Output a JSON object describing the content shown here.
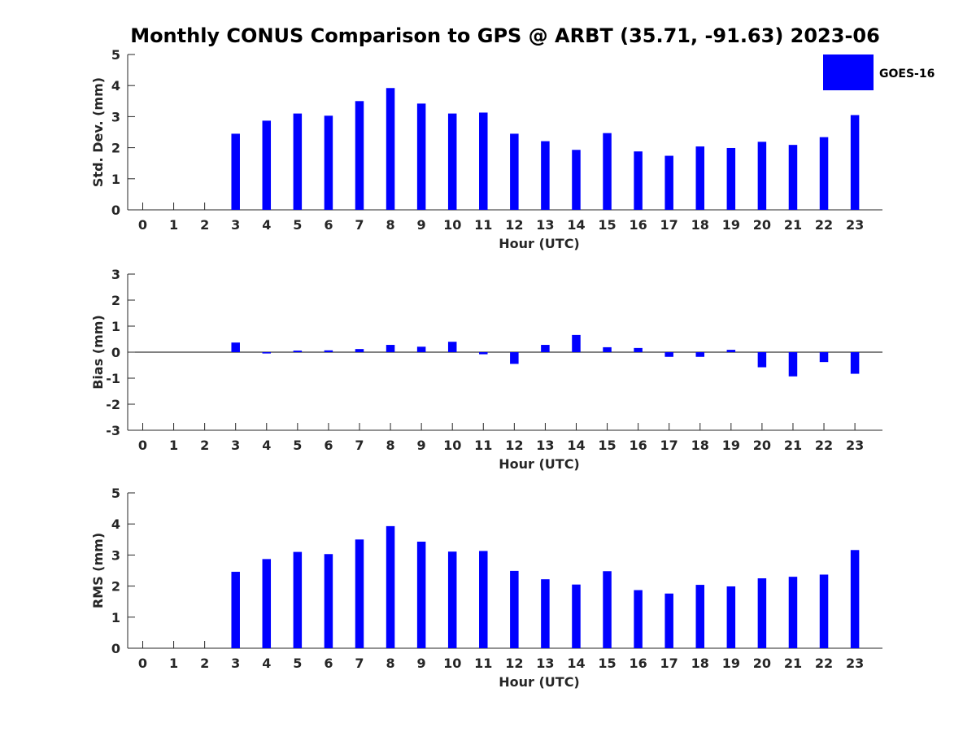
{
  "title": "Monthly CONUS Comparison to GPS @ ARBT (35.71, -91.63) 2023-06",
  "legend": {
    "label": "GOES-16",
    "color": "#0000ff",
    "placement": "top-right"
  },
  "chart_data": [
    {
      "type": "bar",
      "xlabel": "Hour (UTC)",
      "ylabel": "Std. Dev. (mm)",
      "ylim": [
        0,
        5
      ],
      "yticks": [
        0,
        1,
        2,
        3,
        4,
        5
      ],
      "categories": [
        "0",
        "1",
        "2",
        "3",
        "4",
        "5",
        "6",
        "7",
        "8",
        "9",
        "10",
        "11",
        "12",
        "13",
        "14",
        "15",
        "16",
        "17",
        "18",
        "19",
        "20",
        "21",
        "22",
        "23"
      ],
      "series": [
        {
          "name": "GOES-16",
          "color": "#0000ff",
          "values": [
            null,
            null,
            null,
            2.45,
            2.87,
            3.1,
            3.03,
            3.5,
            3.92,
            3.42,
            3.1,
            3.13,
            2.45,
            2.21,
            1.93,
            2.47,
            1.88,
            1.74,
            2.04,
            1.99,
            2.19,
            2.09,
            2.34,
            3.05
          ]
        }
      ],
      "legend": "top-right"
    },
    {
      "type": "bar",
      "xlabel": "Hour (UTC)",
      "ylabel": "Bias (mm)",
      "ylim": [
        -3,
        3
      ],
      "yticks": [
        -3,
        -2,
        -1,
        0,
        1,
        2,
        3
      ],
      "categories": [
        "0",
        "1",
        "2",
        "3",
        "4",
        "5",
        "6",
        "7",
        "8",
        "9",
        "10",
        "11",
        "12",
        "13",
        "14",
        "15",
        "16",
        "17",
        "18",
        "19",
        "20",
        "21",
        "22",
        "23"
      ],
      "series": [
        {
          "name": "GOES-16",
          "color": "#0000ff",
          "values": [
            null,
            null,
            null,
            0.37,
            -0.05,
            0.06,
            0.07,
            0.12,
            0.28,
            0.21,
            0.4,
            -0.08,
            -0.45,
            0.28,
            0.66,
            0.19,
            0.16,
            -0.18,
            -0.18,
            0.09,
            -0.58,
            -0.93,
            -0.38,
            -0.83
          ]
        }
      ]
    },
    {
      "type": "bar",
      "xlabel": "Hour (UTC)",
      "ylabel": "RMS (mm)",
      "ylim": [
        0,
        5
      ],
      "yticks": [
        0,
        1,
        2,
        3,
        4,
        5
      ],
      "categories": [
        "0",
        "1",
        "2",
        "3",
        "4",
        "5",
        "6",
        "7",
        "8",
        "9",
        "10",
        "11",
        "12",
        "13",
        "14",
        "15",
        "16",
        "17",
        "18",
        "19",
        "20",
        "21",
        "22",
        "23"
      ],
      "series": [
        {
          "name": "GOES-16",
          "color": "#0000ff",
          "values": [
            null,
            null,
            null,
            2.46,
            2.87,
            3.1,
            3.03,
            3.5,
            3.93,
            3.43,
            3.11,
            3.13,
            2.49,
            2.22,
            2.05,
            2.48,
            1.87,
            1.76,
            2.04,
            1.99,
            2.25,
            2.3,
            2.37,
            3.16
          ]
        }
      ]
    }
  ]
}
